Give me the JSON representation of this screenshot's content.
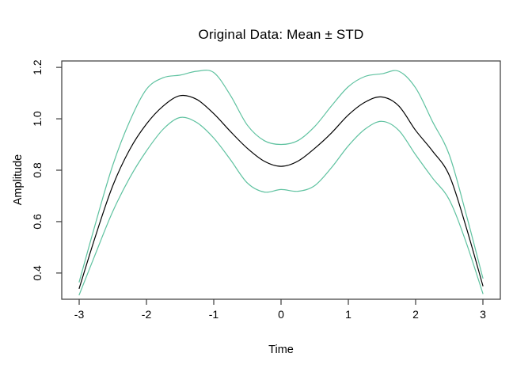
{
  "title": "Original Data: Mean ± STD",
  "colors": {
    "mean_line": "#000000",
    "std_line": "#5fc2a0",
    "frame": "#3a3a3a",
    "text": "#000000",
    "background": "#ffffff"
  },
  "chart_data": {
    "type": "line",
    "title": "Original Data: Mean ± STD",
    "xlabel": "Time",
    "ylabel": "Amplitude",
    "xlim": [
      -3.259,
      3.259
    ],
    "ylim": [
      0.298,
      1.225
    ],
    "grid": false,
    "legend": null,
    "x_ticks": [
      -3,
      -2,
      -1,
      0,
      1,
      2,
      3
    ],
    "x_tick_labels": [
      "-3",
      "-2",
      "-1",
      "0",
      "1",
      "2",
      "3"
    ],
    "y_ticks": [
      0.4,
      0.6,
      0.8,
      1.0,
      1.2
    ],
    "y_tick_labels": [
      "0.4",
      "0.6",
      "0.8",
      "1.0",
      "1.2"
    ],
    "x": [
      -3,
      -2.75,
      -2.5,
      -2.25,
      -2,
      -1.75,
      -1.5,
      -1.25,
      -1,
      -0.75,
      -0.5,
      -0.25,
      0,
      0.25,
      0.5,
      0.75,
      1,
      1.25,
      1.5,
      1.75,
      2,
      2.25,
      2.5,
      2.75,
      3
    ],
    "series": [
      {
        "name": "mean",
        "color": "#000000",
        "values": [
          0.34,
          0.55,
          0.74,
          0.88,
          0.98,
          1.05,
          1.09,
          1.075,
          1.02,
          0.95,
          0.885,
          0.835,
          0.815,
          0.835,
          0.885,
          0.945,
          1.015,
          1.065,
          1.085,
          1.05,
          0.955,
          0.875,
          0.78,
          0.58,
          0.35
        ]
      },
      {
        "name": "mean_plus_std",
        "color": "#5fc2a0",
        "values": [
          0.365,
          0.6,
          0.82,
          0.99,
          1.115,
          1.16,
          1.17,
          1.185,
          1.18,
          1.09,
          0.975,
          0.915,
          0.9,
          0.915,
          0.97,
          1.05,
          1.125,
          1.165,
          1.175,
          1.185,
          1.12,
          0.99,
          0.86,
          0.63,
          0.38
        ]
      },
      {
        "name": "mean_minus_std",
        "color": "#5fc2a0",
        "values": [
          0.315,
          0.48,
          0.64,
          0.77,
          0.875,
          0.96,
          1.005,
          0.985,
          0.925,
          0.84,
          0.75,
          0.715,
          0.725,
          0.718,
          0.74,
          0.81,
          0.895,
          0.96,
          0.99,
          0.955,
          0.86,
          0.77,
          0.685,
          0.52,
          0.32
        ]
      }
    ]
  }
}
